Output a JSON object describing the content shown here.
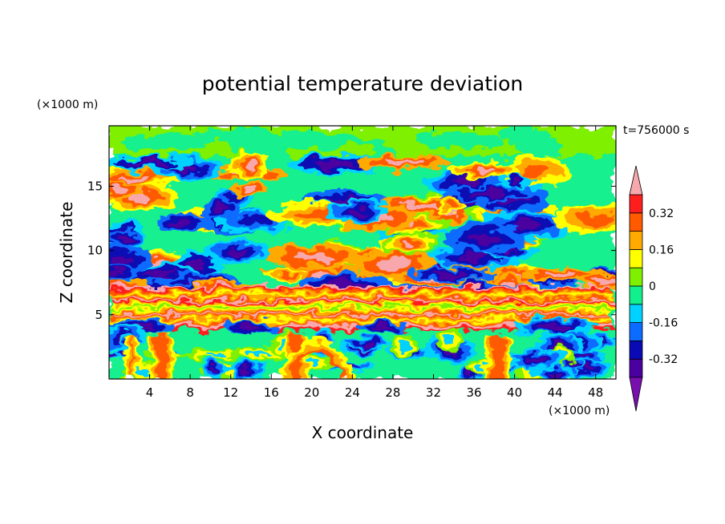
{
  "chart_data": {
    "type": "heatmap",
    "title": "potential temperature deviation",
    "xlabel": "X coordinate",
    "ylabel": "Z coordinate",
    "x_unit": "(×1000 m)",
    "y_unit": "(×1000 m)",
    "time_label": "t=756000 s",
    "xlim": [
      0,
      50
    ],
    "ylim": [
      0,
      19.7
    ],
    "x_ticks": [
      4,
      8,
      12,
      16,
      20,
      24,
      28,
      32,
      36,
      40,
      44,
      48
    ],
    "y_ticks": [
      5,
      10,
      15
    ],
    "colorbar": {
      "levels": [
        -0.4,
        -0.32,
        -0.24,
        -0.16,
        -0.08,
        0,
        0.08,
        0.16,
        0.24,
        0.32,
        0.4
      ],
      "labels": [
        "0.32",
        "0.16",
        "0",
        "-0.16",
        "-0.32"
      ],
      "label_values": [
        0.32,
        0.16,
        0,
        -0.16,
        -0.32
      ],
      "colors": [
        "#7a0fb0",
        "#4b00a0",
        "#0a0ab4",
        "#0c6cff",
        "#00d2ff",
        "#12f08e",
        "#7ef000",
        "#ffff00",
        "#ffaa00",
        "#ff5a00",
        "#ff1e1e",
        "#f8a8ac"
      ],
      "extend": "both"
    }
  }
}
